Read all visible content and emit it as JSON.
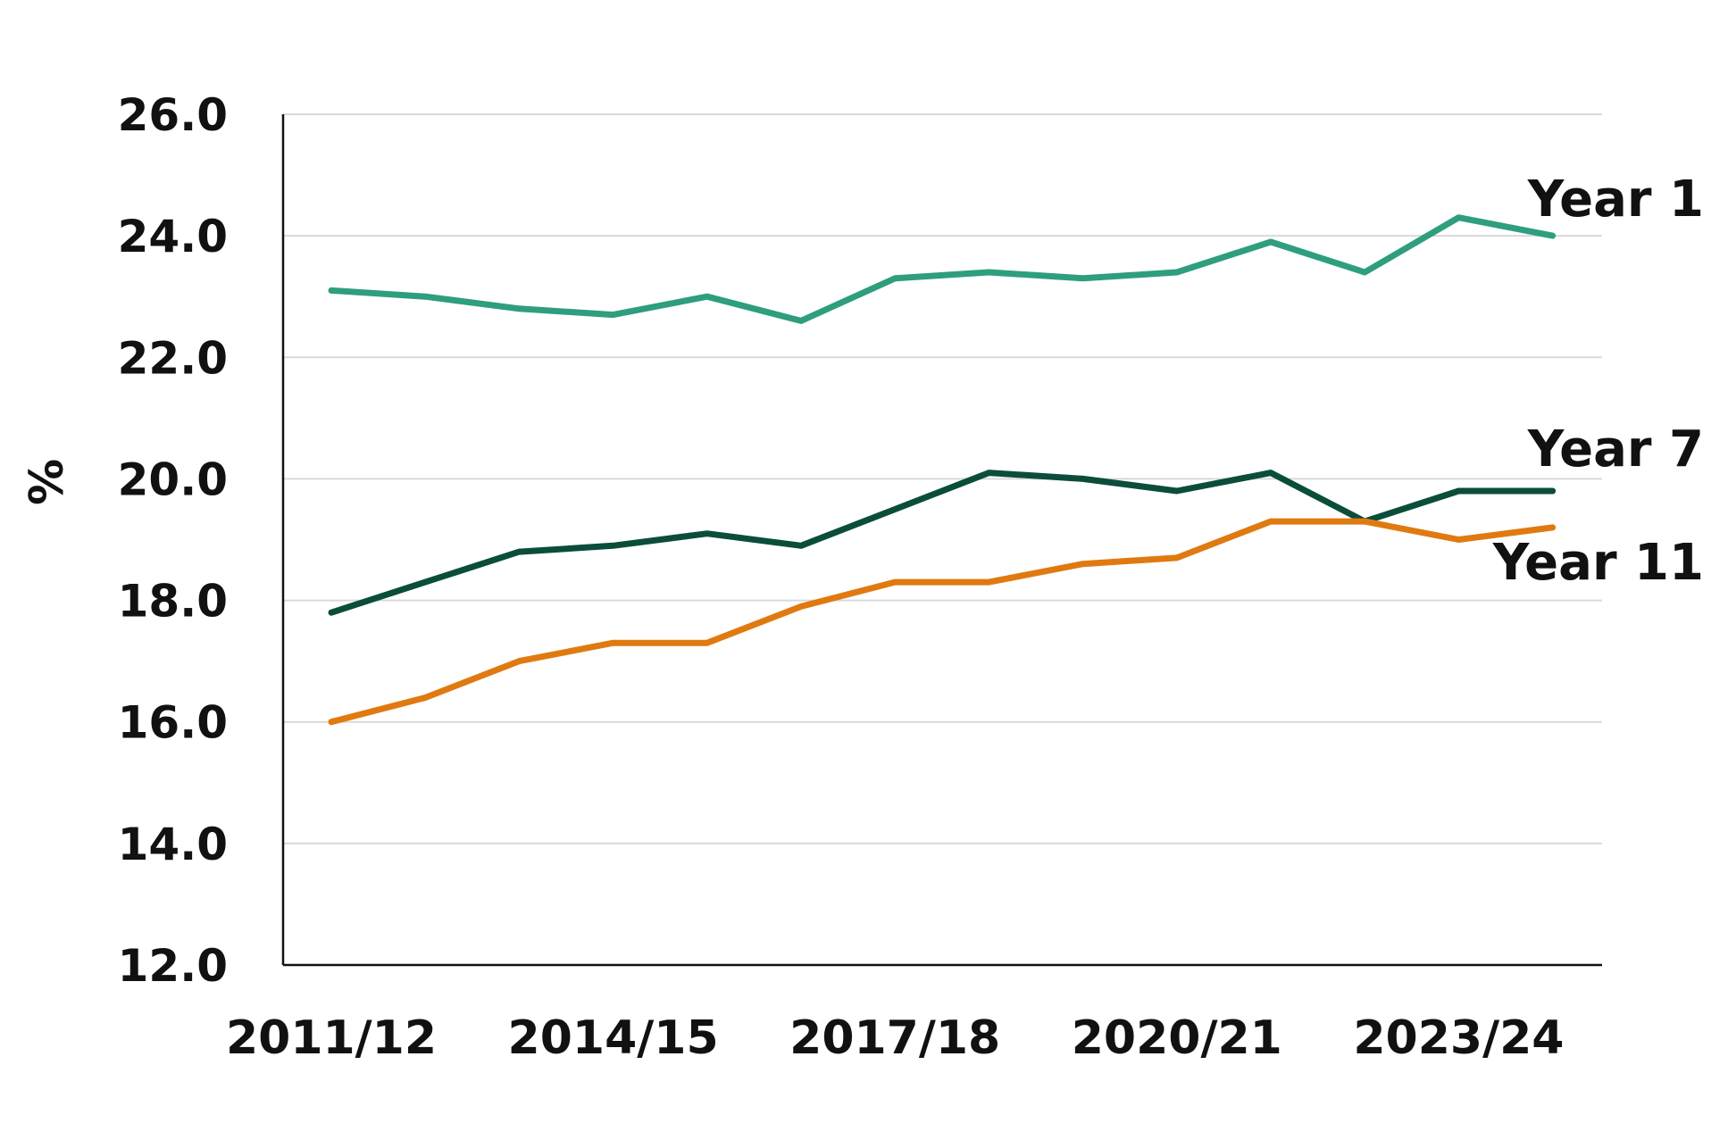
{
  "chart_data": {
    "type": "line",
    "ylabel": "%",
    "ylim": [
      12.0,
      26.0
    ],
    "y_ticks": [
      "12.0",
      "14.0",
      "16.0",
      "18.0",
      "20.0",
      "22.0",
      "24.0",
      "26.0"
    ],
    "x": [
      "2011/12",
      "2012/13",
      "2013/14",
      "2014/15",
      "2015/16",
      "2016/17",
      "2017/18",
      "2018/19",
      "2019/20",
      "2020/21",
      "2021/22",
      "2022/23",
      "2023/24",
      "2024/25"
    ],
    "x_tick_labels": [
      "2011/12",
      "2014/15",
      "2017/18",
      "2020/21",
      "2023/24"
    ],
    "grid": "horizontal",
    "series": [
      {
        "name": "Year 1",
        "color": "#2e9e7e",
        "values": [
          23.1,
          23.0,
          22.8,
          22.7,
          23.0,
          22.6,
          23.3,
          23.4,
          23.3,
          23.4,
          23.9,
          23.4,
          24.3,
          24.0
        ]
      },
      {
        "name": "Year 7",
        "color": "#0b4d3b",
        "values": [
          17.8,
          18.3,
          18.8,
          18.9,
          19.1,
          18.9,
          19.5,
          20.1,
          20.0,
          19.8,
          20.1,
          19.3,
          19.8,
          19.8
        ]
      },
      {
        "name": "Year 11",
        "color": "#e07a10",
        "values": [
          16.0,
          16.4,
          17.0,
          17.3,
          17.3,
          17.9,
          18.3,
          18.3,
          18.6,
          18.7,
          19.3,
          19.3,
          19.0,
          19.2
        ]
      }
    ]
  }
}
